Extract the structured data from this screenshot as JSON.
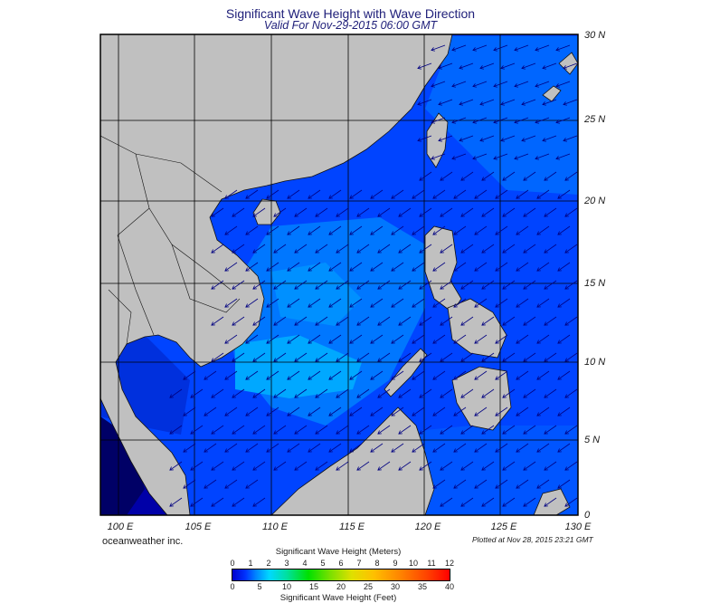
{
  "title": "Significant Wave Height with Wave Direction",
  "subtitle": "Valid For Nov-29-2015 06:00 GMT",
  "credit": "oceanweather inc.",
  "plotted": "Plotted at Nov 28, 2015 23:21 GMT",
  "lat_labels": [
    "30 N",
    "25 N",
    "20 N",
    "15 N",
    "10 N",
    "5 N",
    "0"
  ],
  "lon_labels": [
    "100 E",
    "105 E",
    "110 E",
    "115 E",
    "120 E",
    "125 E",
    "130 E"
  ],
  "colorbar": {
    "title_meters": "Significant Wave Height (Meters)",
    "title_feet": "Significant Wave Height (Feet)",
    "meter_ticks": [
      "0",
      "1",
      "2",
      "3",
      "4",
      "5",
      "6",
      "7",
      "8",
      "9",
      "10",
      "11",
      "12"
    ],
    "feet_ticks": [
      "0",
      "5",
      "10",
      "15",
      "20",
      "25",
      "30",
      "35",
      "40"
    ]
  },
  "colors": {
    "land": "#c0c0c0",
    "deep": "#0000cc",
    "sea": "#0044ff",
    "mid": "#0077ff",
    "high": "#00ccff",
    "arrow": "#000080"
  },
  "map_extent": {
    "lon": [
      100,
      130
    ],
    "lat": [
      0,
      30
    ]
  }
}
